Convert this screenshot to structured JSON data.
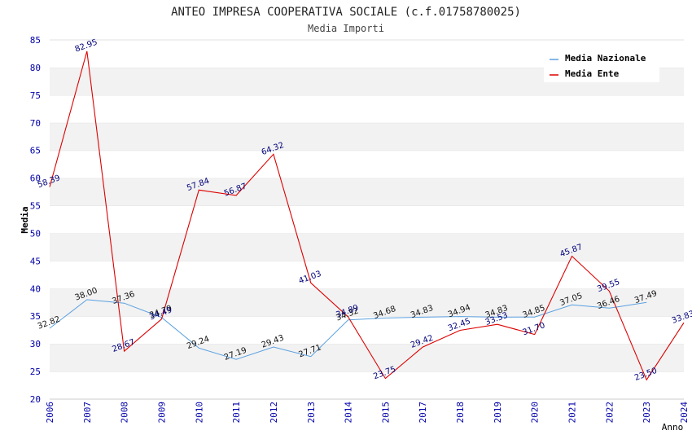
{
  "chart_data": {
    "type": "line",
    "title": "ANTEO IMPRESA COOPERATIVA SOCIALE (c.f.01758780025)",
    "subtitle": "Media Importi",
    "xlabel": "Anno",
    "ylabel": "Media",
    "ylim": [
      20,
      85
    ],
    "yticks": [
      20,
      25,
      30,
      35,
      40,
      45,
      50,
      55,
      60,
      65,
      70,
      75,
      80,
      85
    ],
    "categories": [
      "2006",
      "2007",
      "2008",
      "2009",
      "2010",
      "2011",
      "2012",
      "2013",
      "2014",
      "2015",
      "2017",
      "2018",
      "2019",
      "2020",
      "2021",
      "2022",
      "2023",
      "2024"
    ],
    "grid": "horizontal alternating bands",
    "legend_position": "top-right",
    "series": [
      {
        "name": "Media Nazionale",
        "color": "#5aa0e0",
        "values": [
          32.82,
          38.0,
          37.36,
          34.79,
          29.24,
          27.19,
          29.43,
          27.71,
          34.32,
          34.68,
          34.83,
          34.94,
          34.83,
          34.85,
          37.05,
          36.46,
          37.49,
          null
        ],
        "labels": [
          "32.82",
          "38.00",
          "37.36",
          "34.79",
          "29.24",
          "27.19",
          "29.43",
          "27.71",
          "34.32",
          "34.68",
          "34.83",
          "34.94",
          "34.83",
          "34.85",
          "37.05",
          "36.46",
          "37.49",
          ""
        ]
      },
      {
        "name": "Media Ente",
        "color": "#dd0000",
        "values": [
          58.39,
          82.95,
          28.67,
          34.49,
          57.84,
          56.87,
          64.32,
          41.03,
          34.89,
          23.75,
          29.42,
          32.45,
          33.53,
          31.7,
          45.87,
          39.55,
          23.5,
          33.83
        ],
        "labels": [
          "58.39",
          "82.95",
          "28.67",
          "34.49",
          "57.84",
          "56.87",
          "64.32",
          "41.03",
          "34.89",
          "23.75",
          "29.42",
          "32.45",
          "33.53",
          "31.70",
          "45.87",
          "39.55",
          "23.50",
          "33.83"
        ]
      }
    ]
  }
}
